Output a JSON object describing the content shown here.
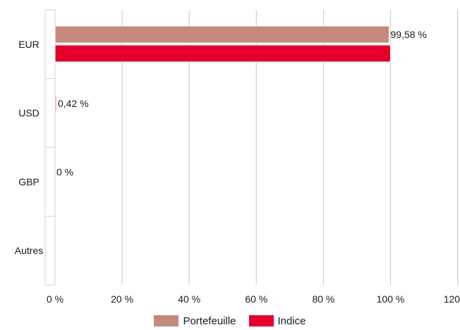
{
  "chart_data": {
    "type": "bar",
    "orientation": "horizontal",
    "categories": [
      "EUR",
      "USD",
      "GBP",
      "Autres"
    ],
    "series": [
      {
        "name": "Portefeuille",
        "values": [
          99.58,
          0.42,
          0,
          null
        ],
        "labels": [
          "99,58 %",
          "0,42 %",
          "0 %",
          ""
        ],
        "color": "#c48a7c"
      },
      {
        "name": "Indice",
        "values": [
          100,
          null,
          null,
          null
        ],
        "labels": [
          "",
          "",
          "",
          ""
        ],
        "color": "#e4002b"
      }
    ],
    "xlim": [
      0,
      120
    ],
    "xticks": [
      0,
      20,
      40,
      60,
      80,
      100,
      120
    ],
    "xtick_labels": [
      "0 %",
      "20 %",
      "40 %",
      "60 %",
      "80 %",
      "100 %",
      "120 %"
    ],
    "grid": "vertical",
    "legend_position": "bottom"
  }
}
